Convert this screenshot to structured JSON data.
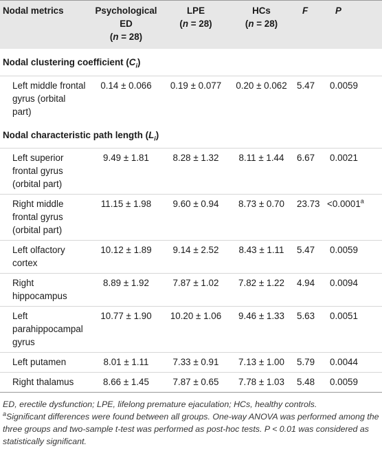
{
  "header": {
    "col0": "Nodal metrics",
    "col1_line1": "Psychological",
    "col1_line2": "ED",
    "col2": "LPE",
    "col3": "HCs",
    "n_eq": "n",
    "n_val": "= 28",
    "col4": "F",
    "col5": "P"
  },
  "sections": [
    {
      "title": "Nodal clustering coefficient",
      "symbol": "C",
      "sub": "i",
      "rows": [
        {
          "region": "Left middle frontal gyrus (orbital part)",
          "ed": "0.14 ± 0.066",
          "lpe": "0.19 ± 0.077",
          "hcs": "0.20 ± 0.062",
          "f": "5.47",
          "p": "0.0059",
          "p_sup": ""
        }
      ]
    },
    {
      "title": "Nodal characteristic path length",
      "symbol": "L",
      "sub": "i",
      "rows": [
        {
          "region": "Left superior frontal gyrus (orbital part)",
          "ed": "9.49 ± 1.81",
          "lpe": "8.28 ± 1.32",
          "hcs": "8.11 ± 1.44",
          "f": "6.67",
          "p": "0.0021",
          "p_sup": ""
        },
        {
          "region": "Right middle frontal gyrus (orbital part)",
          "ed": "11.15 ± 1.98",
          "lpe": "9.60 ± 0.94",
          "hcs": "8.73 ± 0.70",
          "f": "23.73",
          "p": "<0.0001",
          "p_sup": "a"
        },
        {
          "region": "Left olfactory cortex",
          "ed": "10.12 ± 1.89",
          "lpe": "9.14 ± 2.52",
          "hcs": "8.43 ± 1.11",
          "f": "5.47",
          "p": "0.0059",
          "p_sup": ""
        },
        {
          "region": "Right hippocampus",
          "ed": "8.89 ± 1.92",
          "lpe": "7.87 ± 1.02",
          "hcs": "7.82 ± 1.22",
          "f": "4.94",
          "p": "0.0094",
          "p_sup": ""
        },
        {
          "region": "Left parahippocampal gyrus",
          "ed": "10.77 ± 1.90",
          "lpe": "10.20 ± 1.06",
          "hcs": "9.46 ± 1.33",
          "f": "5.63",
          "p": "0.0051",
          "p_sup": ""
        },
        {
          "region": "Left putamen",
          "ed": "8.01 ± 1.11",
          "lpe": "7.33 ± 0.91",
          "hcs": "7.13 ± 1.00",
          "f": "5.79",
          "p": "0.0044",
          "p_sup": ""
        },
        {
          "region": "Right thalamus",
          "ed": "8.66 ± 1.45",
          "lpe": "7.87 ± 0.65",
          "hcs": "7.78 ± 1.03",
          "f": "5.48",
          "p": "0.0059",
          "p_sup": ""
        }
      ]
    }
  ],
  "footnotes": {
    "abbrev": "ED, erectile dysfunction; LPE, lifelong premature ejaculation; HCs, healthy controls.",
    "sig_marker": "a",
    "sig_text": "Significant differences were found between all groups. One-way ANOVA was performed among the three groups and two-sample t-test was performed as post-hoc tests. P < 0.01 was considered as statistically significant."
  }
}
